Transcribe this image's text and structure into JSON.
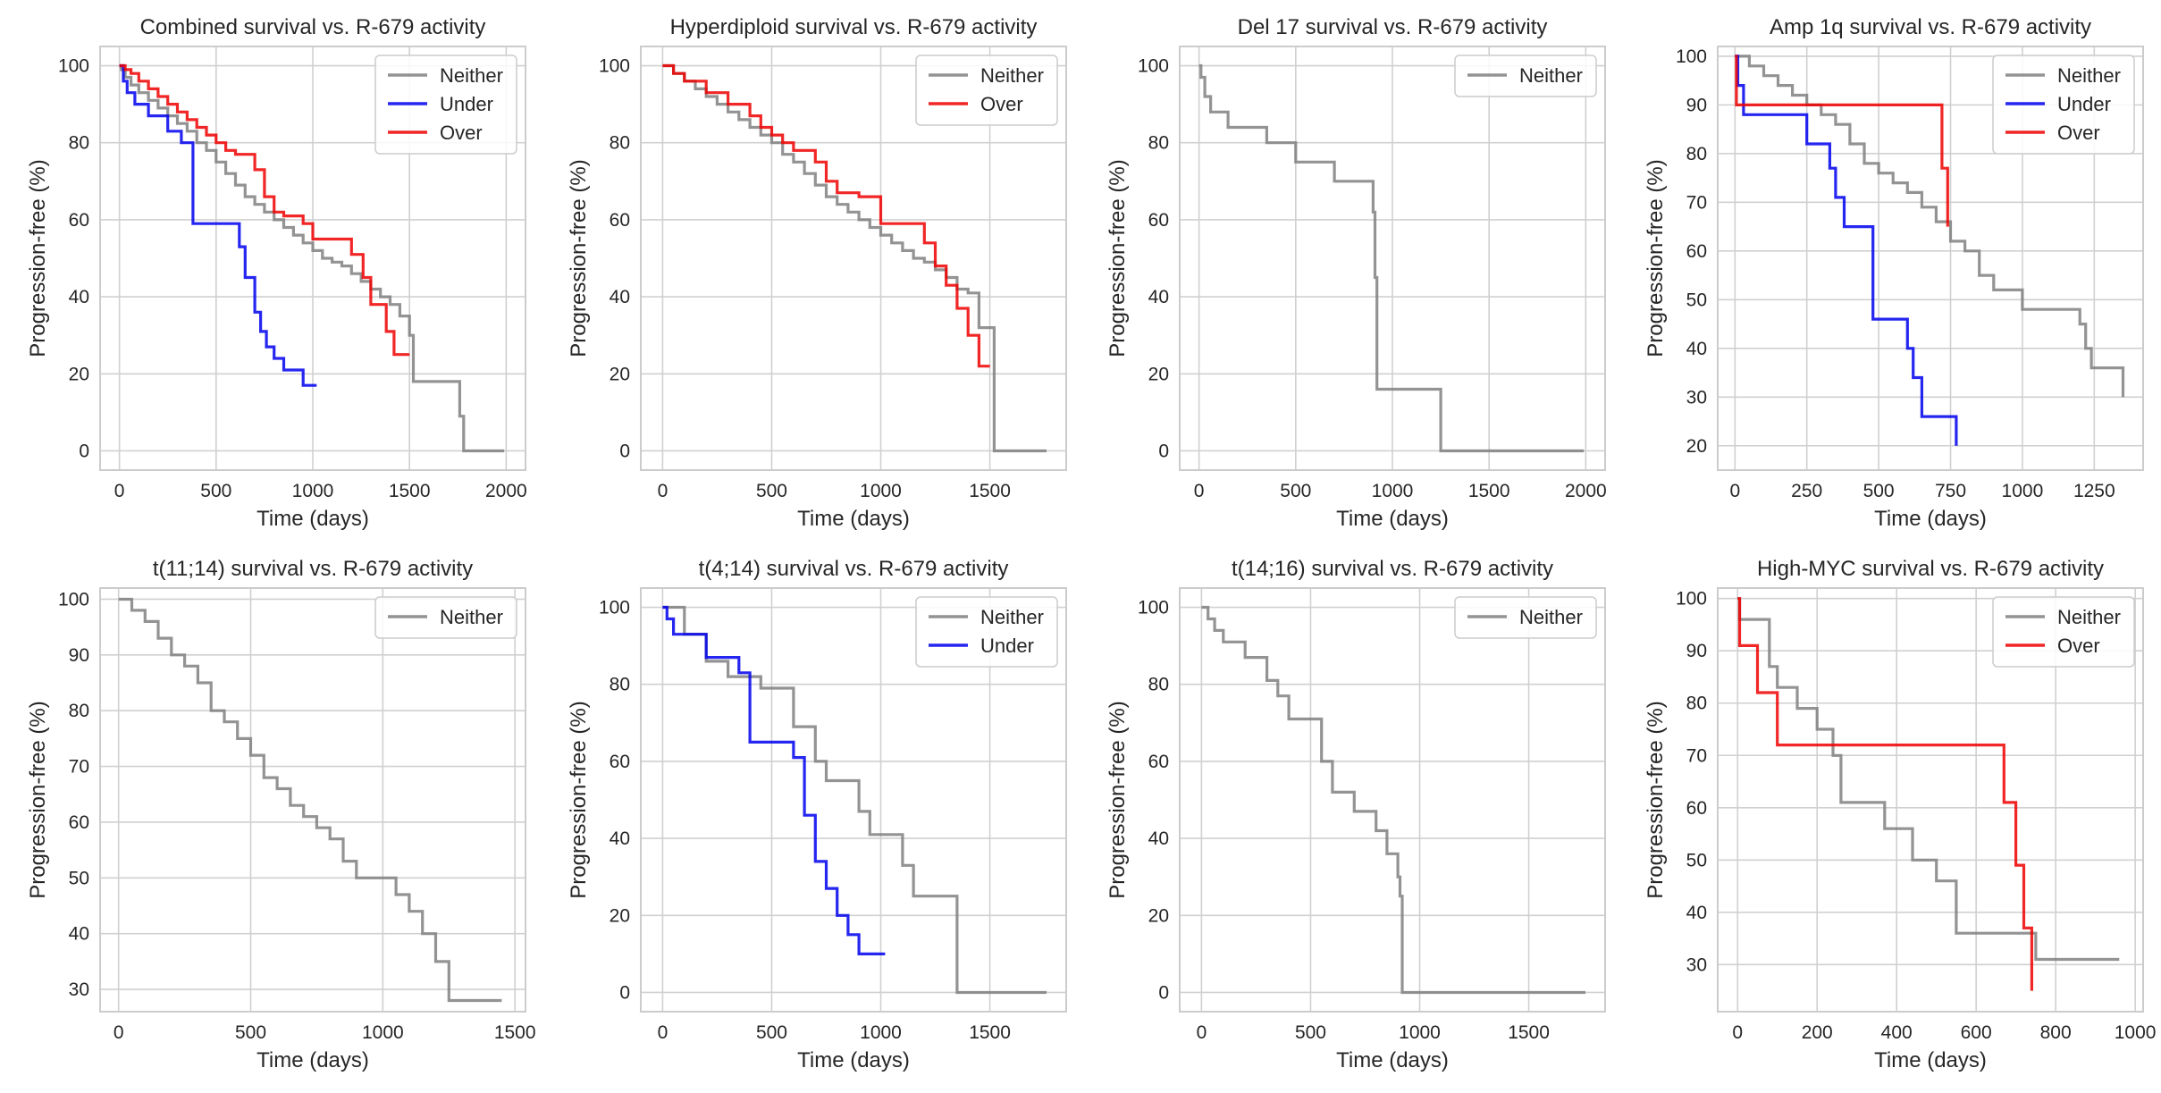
{
  "colors": {
    "Neither": "#808080",
    "Under": "#0000ee",
    "Over": "#ee0000"
  },
  "chart_data": [
    {
      "type": "line",
      "title": "Combined survival vs. R-679 activity",
      "xlabel": "Time (days)",
      "ylabel": "Progression-free (%)",
      "xlim": [
        -100,
        2100
      ],
      "ylim": [
        -5,
        105
      ],
      "xticks": [
        0,
        500,
        1000,
        1500,
        2000
      ],
      "yticks": [
        0,
        20,
        40,
        60,
        80,
        100
      ],
      "legend": [
        "Neither",
        "Under",
        "Over"
      ],
      "series": [
        {
          "name": "Neither",
          "x": [
            0,
            10,
            30,
            60,
            100,
            150,
            200,
            250,
            300,
            350,
            400,
            450,
            500,
            550,
            600,
            650,
            700,
            750,
            800,
            850,
            900,
            950,
            1000,
            1050,
            1100,
            1150,
            1200,
            1250,
            1300,
            1350,
            1400,
            1450,
            1500,
            1520,
            1760,
            1780,
            1990
          ],
          "y": [
            100,
            99,
            97,
            95,
            93,
            91,
            89,
            87,
            85,
            83,
            80,
            78,
            75,
            72,
            69,
            66,
            64,
            62,
            60,
            58,
            56,
            54,
            52,
            50,
            49,
            48,
            46,
            44,
            42,
            40,
            38,
            35,
            30,
            18,
            9,
            0,
            0
          ]
        },
        {
          "name": "Under",
          "x": [
            0,
            20,
            40,
            80,
            150,
            250,
            320,
            380,
            600,
            620,
            650,
            700,
            730,
            760,
            800,
            850,
            950,
            1020
          ],
          "y": [
            100,
            96,
            93,
            90,
            87,
            83,
            80,
            59,
            59,
            53,
            45,
            36,
            31,
            27,
            24,
            21,
            17,
            17
          ]
        },
        {
          "name": "Over",
          "x": [
            0,
            30,
            60,
            100,
            150,
            200,
            250,
            300,
            350,
            400,
            450,
            500,
            550,
            600,
            650,
            700,
            750,
            800,
            850,
            950,
            1000,
            1100,
            1200,
            1260,
            1300,
            1380,
            1420,
            1500
          ],
          "y": [
            100,
            99,
            98,
            96,
            94,
            92,
            90,
            88,
            86,
            84,
            82,
            80,
            78,
            77,
            77,
            73,
            66,
            62,
            61,
            59,
            55,
            55,
            51,
            45,
            38,
            31,
            25,
            25
          ]
        }
      ]
    },
    {
      "type": "line",
      "title": "Hyperdiploid survival vs. R-679 activity",
      "xlabel": "Time (days)",
      "ylabel": "Progression-free (%)",
      "xlim": [
        -100,
        1850
      ],
      "ylim": [
        -5,
        105
      ],
      "xticks": [
        0,
        500,
        1000,
        1500
      ],
      "yticks": [
        0,
        20,
        40,
        60,
        80,
        100
      ],
      "legend": [
        "Neither",
        "Over"
      ],
      "series": [
        {
          "name": "Neither",
          "x": [
            0,
            50,
            100,
            150,
            200,
            250,
            300,
            350,
            400,
            450,
            500,
            550,
            600,
            650,
            700,
            750,
            800,
            850,
            900,
            950,
            1000,
            1050,
            1100,
            1150,
            1200,
            1250,
            1300,
            1350,
            1400,
            1450,
            1510,
            1520,
            1760
          ],
          "y": [
            100,
            98,
            96,
            94,
            92,
            90,
            88,
            86,
            84,
            82,
            80,
            77,
            75,
            72,
            69,
            66,
            64,
            62,
            60,
            58,
            56,
            54,
            52,
            50,
            49,
            47,
            45,
            42,
            41,
            32,
            32,
            0,
            0
          ]
        },
        {
          "name": "Over",
          "x": [
            0,
            50,
            100,
            200,
            300,
            400,
            450,
            500,
            550,
            600,
            650,
            700,
            750,
            800,
            900,
            1000,
            1050,
            1100,
            1200,
            1250,
            1300,
            1350,
            1400,
            1450,
            1500
          ],
          "y": [
            100,
            98,
            96,
            93,
            90,
            87,
            84,
            82,
            80,
            78,
            78,
            75,
            70,
            67,
            66,
            59,
            59,
            59,
            54,
            48,
            43,
            37,
            30,
            22,
            22
          ]
        }
      ]
    },
    {
      "type": "line",
      "title": "Del 17 survival vs. R-679 activity",
      "xlabel": "Time (days)",
      "ylabel": "Progression-free (%)",
      "xlim": [
        -100,
        2100
      ],
      "ylim": [
        -5,
        105
      ],
      "xticks": [
        0,
        500,
        1000,
        1500,
        2000
      ],
      "yticks": [
        0,
        20,
        40,
        60,
        80,
        100
      ],
      "legend": [
        "Neither"
      ],
      "series": [
        {
          "name": "Neither",
          "x": [
            0,
            10,
            30,
            60,
            150,
            350,
            500,
            700,
            900,
            910,
            920,
            1250,
            1990
          ],
          "y": [
            100,
            97,
            92,
            88,
            84,
            80,
            75,
            70,
            62,
            45,
            16,
            0,
            0
          ]
        }
      ]
    },
    {
      "type": "line",
      "title": "Amp 1q survival vs. R-679 activity",
      "xlabel": "Time (days)",
      "ylabel": "Progression-free (%)",
      "xlim": [
        -60,
        1420
      ],
      "ylim": [
        15,
        102
      ],
      "xticks": [
        0,
        250,
        500,
        750,
        1000,
        1250
      ],
      "yticks": [
        20,
        30,
        40,
        50,
        60,
        70,
        80,
        90,
        100
      ],
      "legend": [
        "Neither",
        "Under",
        "Over"
      ],
      "series": [
        {
          "name": "Neither",
          "x": [
            0,
            50,
            100,
            150,
            200,
            250,
            300,
            350,
            400,
            450,
            500,
            550,
            600,
            650,
            700,
            750,
            800,
            850,
            900,
            1000,
            1200,
            1220,
            1240,
            1350
          ],
          "y": [
            100,
            98,
            96,
            94,
            92,
            90,
            88,
            86,
            82,
            78,
            76,
            74,
            72,
            69,
            66,
            62,
            60,
            55,
            52,
            48,
            45,
            40,
            36,
            30
          ]
        },
        {
          "name": "Under",
          "x": [
            0,
            10,
            30,
            180,
            250,
            330,
            350,
            380,
            480,
            570,
            600,
            620,
            650,
            730,
            770
          ],
          "y": [
            100,
            94,
            88,
            88,
            82,
            77,
            71,
            65,
            46,
            46,
            40,
            34,
            26,
            26,
            20
          ]
        },
        {
          "name": "Over",
          "x": [
            0,
            5,
            380,
            720,
            740
          ],
          "y": [
            100,
            90,
            90,
            77,
            65
          ]
        }
      ]
    },
    {
      "type": "line",
      "title": "t(11;14) survival vs. R-679 activity",
      "xlabel": "Time (days)",
      "ylabel": "Progression-free (%)",
      "xlim": [
        -70,
        1540
      ],
      "ylim": [
        26,
        102
      ],
      "xticks": [
        0,
        500,
        1000,
        1500
      ],
      "yticks": [
        30,
        40,
        50,
        60,
        70,
        80,
        90,
        100
      ],
      "legend": [
        "Neither"
      ],
      "series": [
        {
          "name": "Neither",
          "x": [
            0,
            50,
            100,
            150,
            200,
            250,
            300,
            350,
            400,
            450,
            500,
            550,
            600,
            650,
            700,
            750,
            800,
            850,
            900,
            1050,
            1100,
            1150,
            1200,
            1250,
            1450
          ],
          "y": [
            100,
            98,
            96,
            93,
            90,
            88,
            85,
            80,
            78,
            75,
            72,
            68,
            66,
            63,
            61,
            59,
            57,
            53,
            50,
            47,
            44,
            40,
            35,
            28,
            28
          ]
        }
      ]
    },
    {
      "type": "line",
      "title": "t(4;14) survival vs. R-679 activity",
      "xlabel": "Time (days)",
      "ylabel": "Progression-free (%)",
      "xlim": [
        -100,
        1850
      ],
      "ylim": [
        -5,
        105
      ],
      "xticks": [
        0,
        500,
        1000,
        1500
      ],
      "yticks": [
        0,
        20,
        40,
        60,
        80,
        100
      ],
      "legend": [
        "Neither",
        "Under"
      ],
      "series": [
        {
          "name": "Neither",
          "x": [
            0,
            100,
            200,
            300,
            450,
            600,
            700,
            750,
            900,
            950,
            1100,
            1150,
            1350,
            1760
          ],
          "y": [
            100,
            93,
            86,
            82,
            79,
            69,
            60,
            55,
            47,
            41,
            33,
            25,
            0,
            0
          ]
        },
        {
          "name": "Under",
          "x": [
            0,
            20,
            50,
            200,
            350,
            400,
            600,
            650,
            700,
            750,
            800,
            850,
            900,
            1020
          ],
          "y": [
            100,
            97,
            93,
            87,
            83,
            65,
            61,
            46,
            34,
            27,
            20,
            15,
            10,
            10
          ]
        }
      ]
    },
    {
      "type": "line",
      "title": "t(14;16) survival vs. R-679 activity",
      "xlabel": "Time (days)",
      "ylabel": "Progression-free (%)",
      "xlim": [
        -100,
        1850
      ],
      "ylim": [
        -5,
        105
      ],
      "xticks": [
        0,
        500,
        1000,
        1500
      ],
      "yticks": [
        0,
        20,
        40,
        60,
        80,
        100
      ],
      "legend": [
        "Neither"
      ],
      "series": [
        {
          "name": "Neither",
          "x": [
            0,
            30,
            60,
            100,
            200,
            300,
            350,
            400,
            550,
            600,
            700,
            800,
            850,
            900,
            910,
            920,
            1760
          ],
          "y": [
            100,
            97,
            94,
            91,
            87,
            81,
            77,
            71,
            60,
            52,
            47,
            42,
            36,
            30,
            25,
            0,
            0
          ]
        }
      ]
    },
    {
      "type": "line",
      "title": "High-MYC survival vs. R-679 activity",
      "xlabel": "Time (days)",
      "ylabel": "Progression-free (%)",
      "xlim": [
        -50,
        1020
      ],
      "ylim": [
        21,
        102
      ],
      "xticks": [
        0,
        200,
        400,
        600,
        800,
        1000
      ],
      "yticks": [
        30,
        40,
        50,
        60,
        70,
        80,
        90,
        100
      ],
      "legend": [
        "Neither",
        "Over"
      ],
      "series": [
        {
          "name": "Neither",
          "x": [
            0,
            5,
            80,
            100,
            150,
            200,
            240,
            260,
            370,
            440,
            500,
            550,
            720,
            750,
            960
          ],
          "y": [
            100,
            96,
            87,
            83,
            79,
            75,
            70,
            61,
            56,
            50,
            46,
            36,
            36,
            31,
            31
          ]
        },
        {
          "name": "Over",
          "x": [
            0,
            5,
            50,
            100,
            470,
            670,
            700,
            720,
            740
          ],
          "y": [
            100,
            91,
            82,
            72,
            72,
            61,
            49,
            37,
            25
          ]
        }
      ]
    }
  ]
}
